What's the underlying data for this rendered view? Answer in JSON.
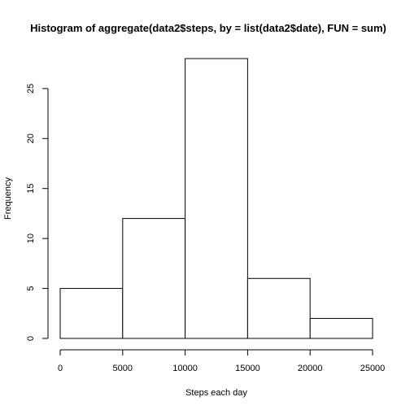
{
  "chart_data": {
    "type": "bar",
    "title": "Histogram of aggregate(data2$steps, by = list(data2$date), FUN = sum)",
    "xlabel": "Steps each day",
    "ylabel": "Frequency",
    "bins": [
      {
        "from": 0,
        "to": 5000,
        "count": 5
      },
      {
        "from": 5000,
        "to": 10000,
        "count": 12
      },
      {
        "from": 10000,
        "to": 15000,
        "count": 28
      },
      {
        "from": 15000,
        "to": 20000,
        "count": 6
      },
      {
        "from": 20000,
        "to": 25000,
        "count": 2
      }
    ],
    "xticks": [
      0,
      5000,
      10000,
      15000,
      20000,
      25000
    ],
    "yticks": [
      0,
      5,
      10,
      15,
      20,
      25
    ],
    "xlim": [
      0,
      25000
    ],
    "ylim": [
      0,
      28
    ],
    "grid": false,
    "bar_fill": "#ffffff",
    "bar_stroke": "#000000"
  }
}
